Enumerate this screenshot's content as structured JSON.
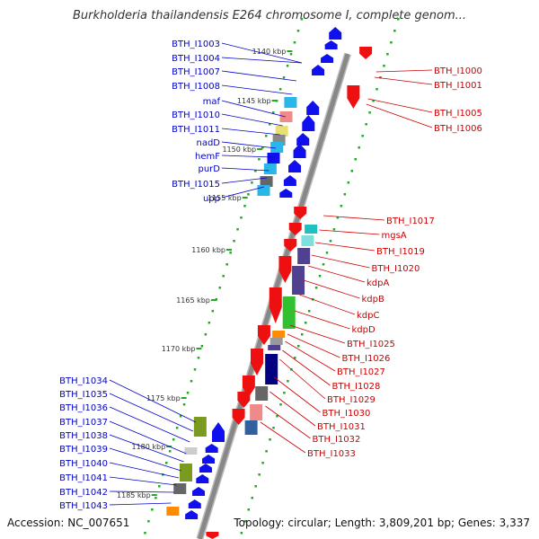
{
  "title": "Burkholderia thailandensis E264 chromosome I, complete genom...",
  "footer": {
    "accession": "Accession: NC_007651",
    "summary": "Topology: circular; Length: 3,809,201 bp; Genes: 3,337"
  },
  "colors": {
    "forward_label": "#0000cc",
    "reverse_label": "#cc0000",
    "forward_arrow": "#1010ee",
    "reverse_arrow": "#ee1010",
    "tick": "#22aa22",
    "backbone": "#888888"
  },
  "scale_ticks": [
    "1140 kbp",
    "1145 kbp",
    "1150 kbp",
    "1155 kbp",
    "1160 kbp",
    "1165 kbp",
    "1170 kbp",
    "1175 kbp",
    "1180 kbp",
    "1185 kbp"
  ],
  "left_labels": [
    "BTH_I1003",
    "BTH_I1004",
    "BTH_I1007",
    "BTH_I1008",
    "maf",
    "BTH_I1010",
    "BTH_I1011",
    "nadD",
    "hemF",
    "purD",
    "BTH_I1015",
    "upp",
    "BTH_I1034",
    "BTH_I1035",
    "BTH_I1036",
    "BTH_I1037",
    "BTH_I1038",
    "BTH_I1039",
    "BTH_I1040",
    "BTH_I1041",
    "BTH_I1042",
    "BTH_I1043"
  ],
  "right_labels": [
    "BTH_I1000",
    "BTH_I1001",
    "BTH_I1005",
    "BTH_I1006",
    "BTH_I1017",
    "mgsA",
    "BTH_I1019",
    "BTH_I1020",
    "kdpA",
    "kdpB",
    "kdpC",
    "kdpD",
    "BTH_I1025",
    "BTH_I1026",
    "BTH_I1027",
    "BTH_I1028",
    "BTH_I1029",
    "BTH_I1030",
    "BTH_I1031",
    "BTH_I1032",
    "BTH_I1033"
  ]
}
